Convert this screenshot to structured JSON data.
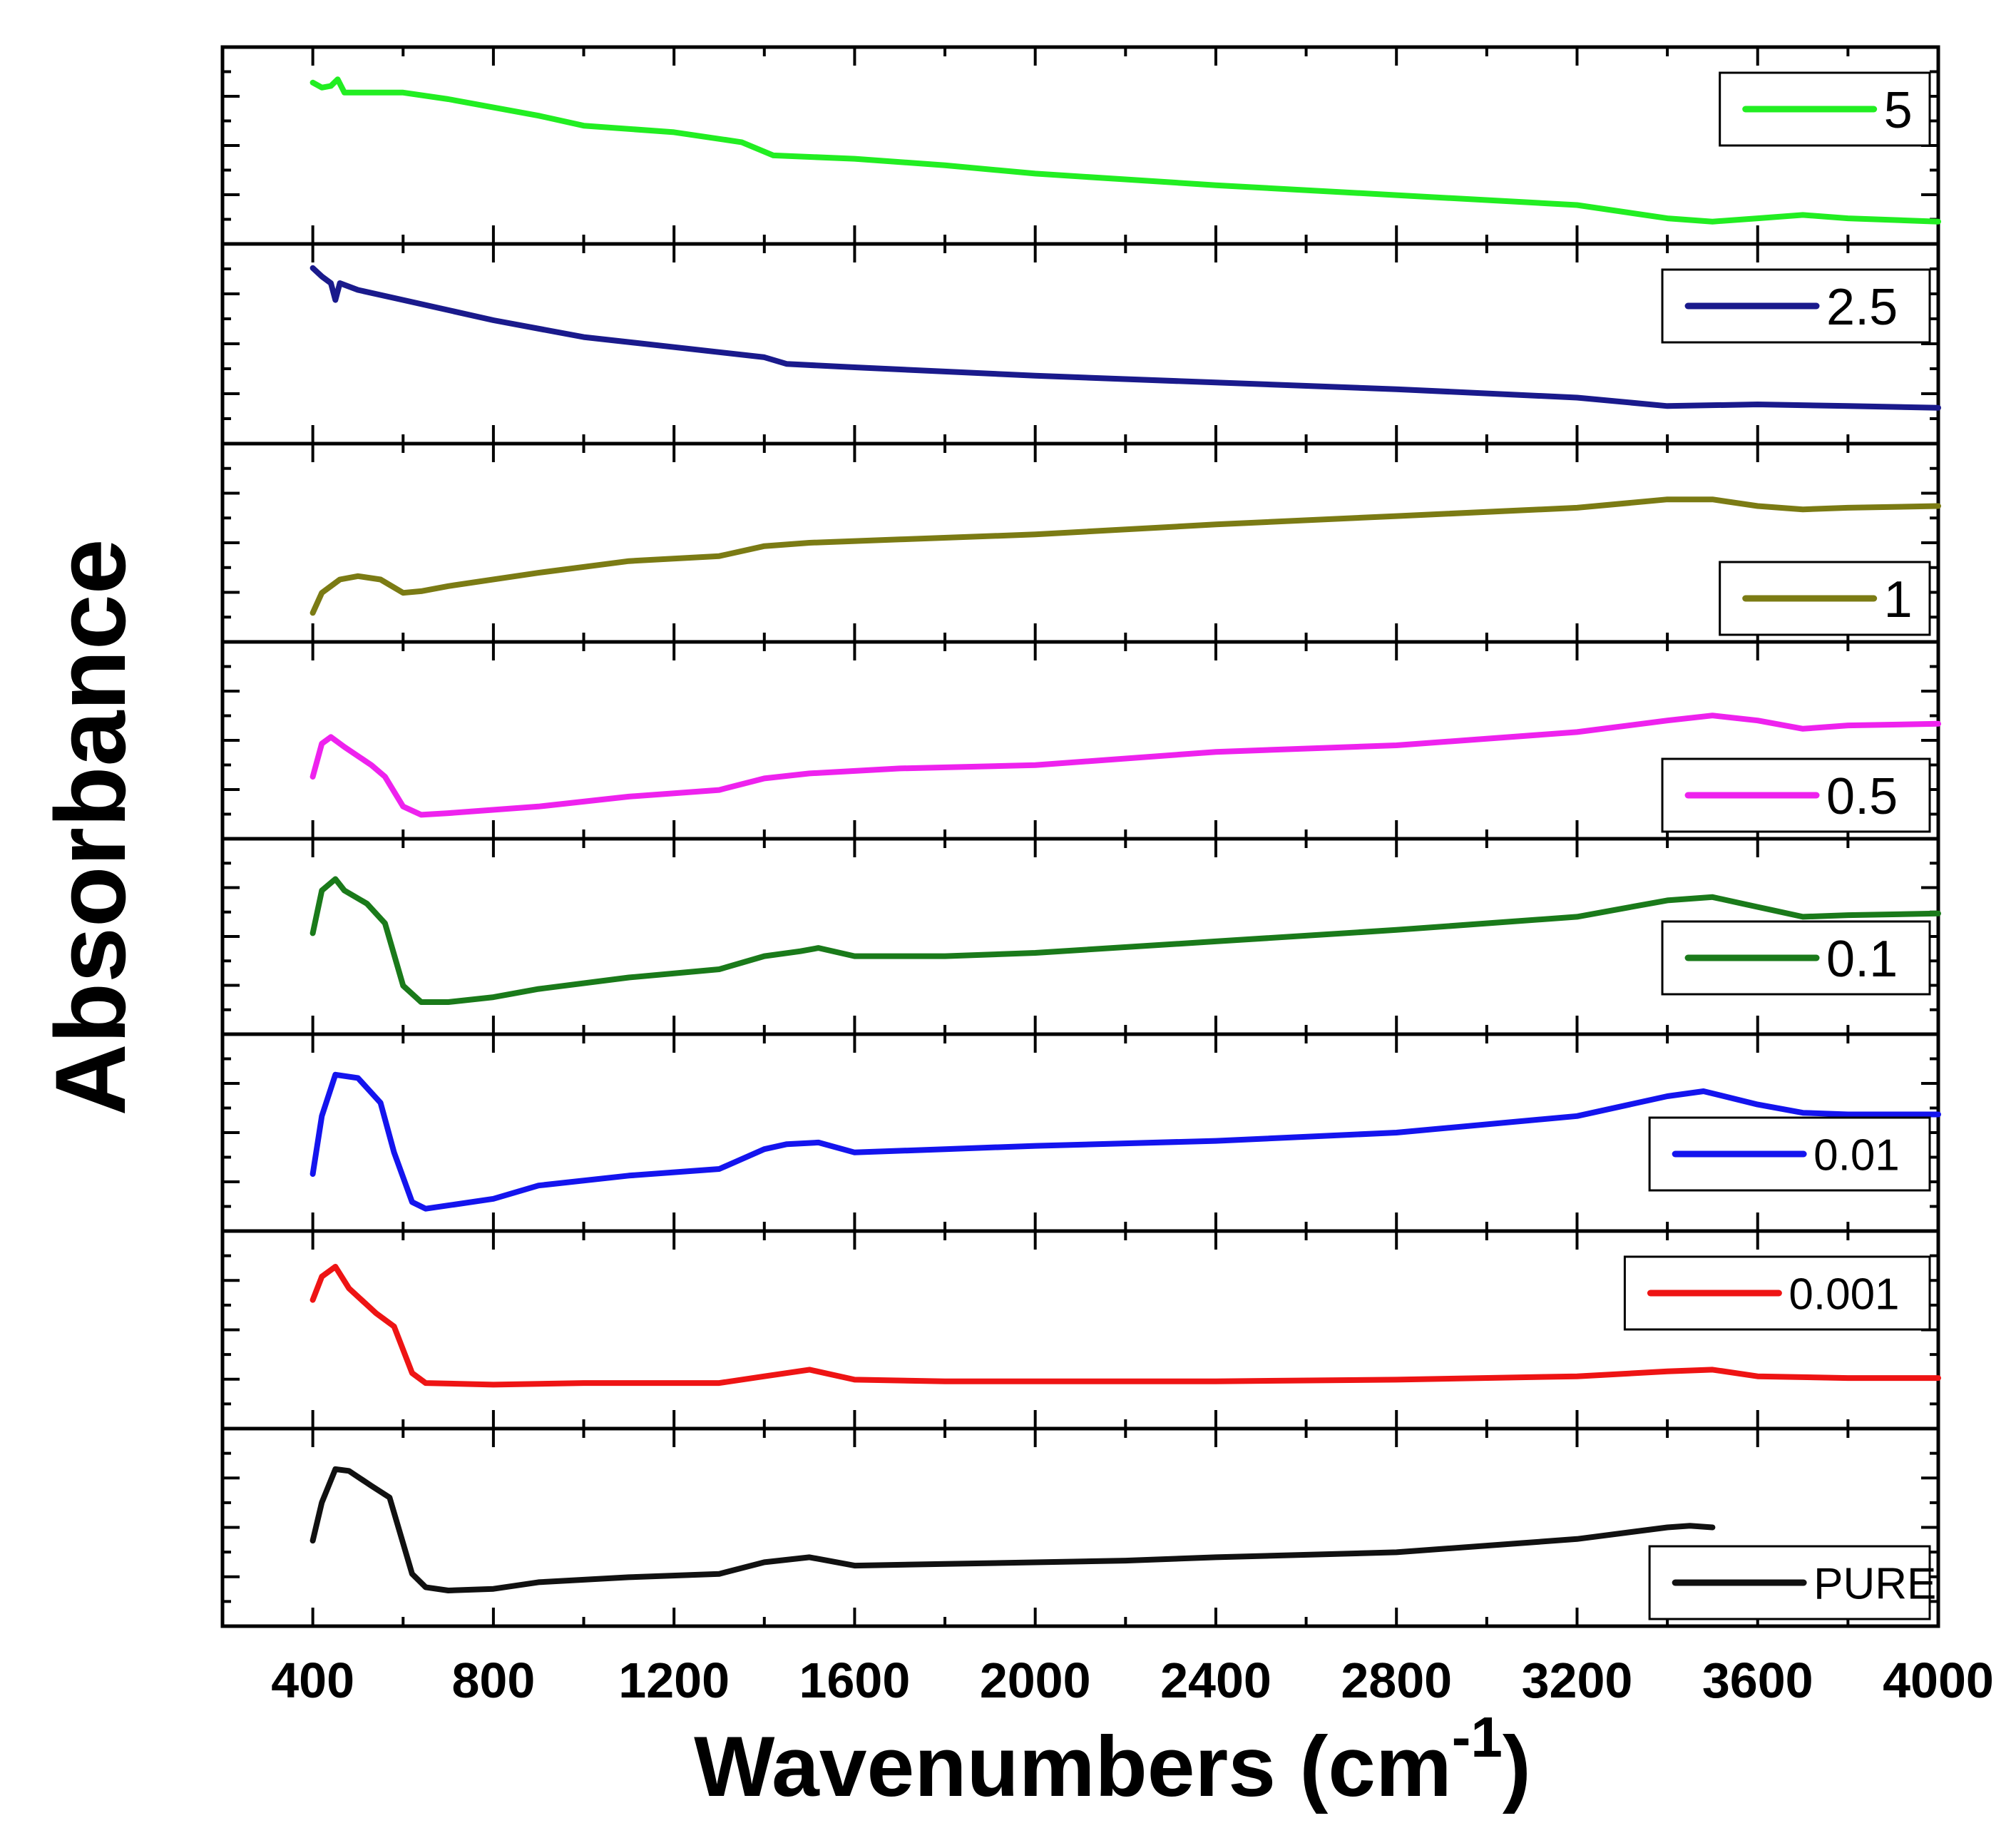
{
  "chart_data": {
    "type": "line",
    "layout": "stacked-offset",
    "xlabel": "Wavenumbers (cm",
    "xlabel_sup": "-1",
    "xlabel_close": ")",
    "ylabel": "Absorbance",
    "xlim": [
      200,
      4000
    ],
    "xticks": [
      400,
      800,
      1200,
      1600,
      2000,
      2400,
      2800,
      3200,
      3600,
      4000
    ],
    "series": [
      {
        "name": "5",
        "color": "#22ee22",
        "legend_pos": "top-right",
        "points": [
          [
            400,
            0.12
          ],
          [
            420,
            0.15
          ],
          [
            440,
            0.14
          ],
          [
            455,
            0.1
          ],
          [
            470,
            0.18
          ],
          [
            500,
            0.18
          ],
          [
            600,
            0.18
          ],
          [
            700,
            0.22
          ],
          [
            900,
            0.32
          ],
          [
            1000,
            0.38
          ],
          [
            1200,
            0.42
          ],
          [
            1350,
            0.48
          ],
          [
            1420,
            0.56
          ],
          [
            1600,
            0.58
          ],
          [
            1800,
            0.62
          ],
          [
            2000,
            0.67
          ],
          [
            2400,
            0.74
          ],
          [
            2800,
            0.8
          ],
          [
            3200,
            0.86
          ],
          [
            3400,
            0.94
          ],
          [
            3500,
            0.96
          ],
          [
            3600,
            0.94
          ],
          [
            3700,
            0.92
          ],
          [
            3800,
            0.94
          ],
          [
            4000,
            0.96
          ]
        ]
      },
      {
        "name": "2.5",
        "color": "#1a1a8c",
        "legend_pos": "top-right",
        "points": [
          [
            400,
            0.05
          ],
          [
            420,
            0.1
          ],
          [
            440,
            0.14
          ],
          [
            450,
            0.24
          ],
          [
            460,
            0.14
          ],
          [
            500,
            0.18
          ],
          [
            600,
            0.24
          ],
          [
            800,
            0.36
          ],
          [
            1000,
            0.46
          ],
          [
            1200,
            0.52
          ],
          [
            1400,
            0.58
          ],
          [
            1450,
            0.62
          ],
          [
            1600,
            0.64
          ],
          [
            2000,
            0.69
          ],
          [
            2400,
            0.73
          ],
          [
            2800,
            0.77
          ],
          [
            3200,
            0.82
          ],
          [
            3400,
            0.87
          ],
          [
            3600,
            0.86
          ],
          [
            3800,
            0.87
          ],
          [
            4000,
            0.88
          ]
        ]
      },
      {
        "name": "1",
        "color": "#7b7b14",
        "legend_pos": "bottom-right",
        "points": [
          [
            400,
            0.92
          ],
          [
            420,
            0.8
          ],
          [
            460,
            0.72
          ],
          [
            500,
            0.7
          ],
          [
            550,
            0.72
          ],
          [
            600,
            0.8
          ],
          [
            640,
            0.79
          ],
          [
            700,
            0.76
          ],
          [
            900,
            0.68
          ],
          [
            1100,
            0.61
          ],
          [
            1300,
            0.58
          ],
          [
            1400,
            0.52
          ],
          [
            1500,
            0.5
          ],
          [
            1700,
            0.48
          ],
          [
            2000,
            0.45
          ],
          [
            2400,
            0.39
          ],
          [
            2800,
            0.34
          ],
          [
            3200,
            0.29
          ],
          [
            3400,
            0.24
          ],
          [
            3500,
            0.24
          ],
          [
            3600,
            0.28
          ],
          [
            3700,
            0.3
          ],
          [
            3800,
            0.29
          ],
          [
            4000,
            0.28
          ]
        ]
      },
      {
        "name": "0.5",
        "color": "#ee22ee",
        "legend_pos": "bottom-right",
        "points": [
          [
            400,
            0.72
          ],
          [
            420,
            0.52
          ],
          [
            440,
            0.48
          ],
          [
            470,
            0.54
          ],
          [
            530,
            0.65
          ],
          [
            560,
            0.72
          ],
          [
            600,
            0.9
          ],
          [
            640,
            0.95
          ],
          [
            700,
            0.94
          ],
          [
            900,
            0.9
          ],
          [
            1100,
            0.84
          ],
          [
            1300,
            0.8
          ],
          [
            1400,
            0.73
          ],
          [
            1500,
            0.7
          ],
          [
            1700,
            0.67
          ],
          [
            2000,
            0.65
          ],
          [
            2400,
            0.57
          ],
          [
            2800,
            0.53
          ],
          [
            3200,
            0.45
          ],
          [
            3400,
            0.38
          ],
          [
            3500,
            0.35
          ],
          [
            3600,
            0.38
          ],
          [
            3700,
            0.43
          ],
          [
            3800,
            0.41
          ],
          [
            4000,
            0.4
          ]
        ]
      },
      {
        "name": "0.1",
        "color": "#1a7a1a",
        "legend_pos": "right",
        "points": [
          [
            400,
            0.48
          ],
          [
            420,
            0.22
          ],
          [
            450,
            0.15
          ],
          [
            470,
            0.22
          ],
          [
            520,
            0.3
          ],
          [
            560,
            0.42
          ],
          [
            600,
            0.8
          ],
          [
            640,
            0.9
          ],
          [
            700,
            0.9
          ],
          [
            800,
            0.87
          ],
          [
            900,
            0.82
          ],
          [
            1100,
            0.75
          ],
          [
            1300,
            0.7
          ],
          [
            1400,
            0.62
          ],
          [
            1480,
            0.59
          ],
          [
            1520,
            0.57
          ],
          [
            1600,
            0.62
          ],
          [
            1800,
            0.62
          ],
          [
            2000,
            0.6
          ],
          [
            2400,
            0.53
          ],
          [
            2800,
            0.46
          ],
          [
            3200,
            0.38
          ],
          [
            3400,
            0.28
          ],
          [
            3500,
            0.26
          ],
          [
            3600,
            0.32
          ],
          [
            3700,
            0.38
          ],
          [
            3800,
            0.37
          ],
          [
            4000,
            0.36
          ]
        ]
      },
      {
        "name": "0.01",
        "color": "#1414ee",
        "legend_pos": "right",
        "points": [
          [
            400,
            0.75
          ],
          [
            420,
            0.4
          ],
          [
            450,
            0.15
          ],
          [
            500,
            0.17
          ],
          [
            550,
            0.32
          ],
          [
            580,
            0.62
          ],
          [
            620,
            0.92
          ],
          [
            650,
            0.96
          ],
          [
            700,
            0.94
          ],
          [
            800,
            0.9
          ],
          [
            900,
            0.82
          ],
          [
            1100,
            0.76
          ],
          [
            1300,
            0.72
          ],
          [
            1400,
            0.6
          ],
          [
            1450,
            0.57
          ],
          [
            1520,
            0.56
          ],
          [
            1600,
            0.62
          ],
          [
            1800,
            0.6
          ],
          [
            2000,
            0.58
          ],
          [
            2400,
            0.55
          ],
          [
            2800,
            0.5
          ],
          [
            3200,
            0.4
          ],
          [
            3400,
            0.28
          ],
          [
            3480,
            0.25
          ],
          [
            3600,
            0.33
          ],
          [
            3700,
            0.38
          ],
          [
            3800,
            0.39
          ],
          [
            4000,
            0.39
          ]
        ]
      },
      {
        "name": "0.001",
        "color": "#ee1414",
        "legend_pos": "top-right",
        "points": [
          [
            400,
            0.32
          ],
          [
            420,
            0.18
          ],
          [
            450,
            0.12
          ],
          [
            480,
            0.25
          ],
          [
            540,
            0.4
          ],
          [
            580,
            0.48
          ],
          [
            620,
            0.76
          ],
          [
            650,
            0.82
          ],
          [
            800,
            0.83
          ],
          [
            1000,
            0.82
          ],
          [
            1300,
            0.82
          ],
          [
            1400,
            0.78
          ],
          [
            1500,
            0.74
          ],
          [
            1600,
            0.8
          ],
          [
            1800,
            0.81
          ],
          [
            2400,
            0.81
          ],
          [
            2800,
            0.8
          ],
          [
            3200,
            0.78
          ],
          [
            3400,
            0.75
          ],
          [
            3500,
            0.74
          ],
          [
            3600,
            0.78
          ],
          [
            3800,
            0.79
          ],
          [
            4000,
            0.79
          ]
        ]
      },
      {
        "name": "PURE",
        "color": "#111111",
        "legend_pos": "bottom-right",
        "points": [
          [
            400,
            0.58
          ],
          [
            420,
            0.35
          ],
          [
            450,
            0.15
          ],
          [
            480,
            0.16
          ],
          [
            530,
            0.25
          ],
          [
            570,
            0.32
          ],
          [
            620,
            0.78
          ],
          [
            650,
            0.86
          ],
          [
            700,
            0.88
          ],
          [
            800,
            0.87
          ],
          [
            900,
            0.83
          ],
          [
            1100,
            0.8
          ],
          [
            1300,
            0.78
          ],
          [
            1400,
            0.71
          ],
          [
            1500,
            0.68
          ],
          [
            1600,
            0.73
          ],
          [
            1800,
            0.72
          ],
          [
            2200,
            0.7
          ],
          [
            2400,
            0.68
          ],
          [
            2800,
            0.65
          ],
          [
            3200,
            0.57
          ],
          [
            3400,
            0.5
          ],
          [
            3450,
            0.49
          ],
          [
            3500,
            0.5
          ]
        ]
      }
    ]
  }
}
